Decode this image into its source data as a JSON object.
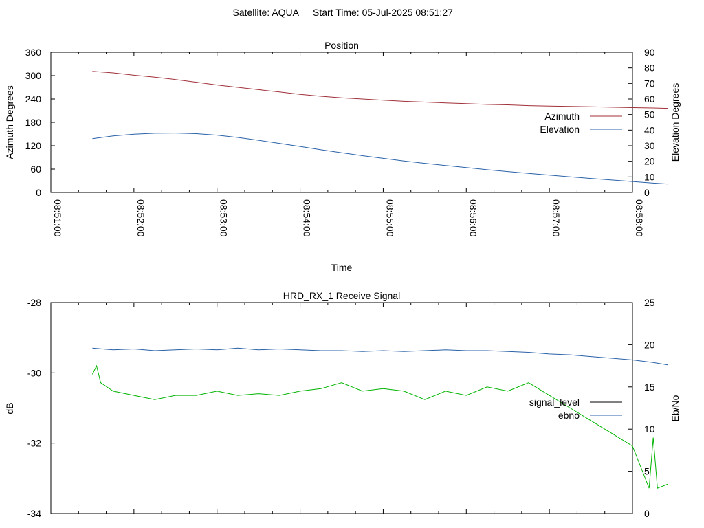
{
  "header": {
    "satellite": "Satellite: AQUA",
    "start_time": "Start Time: 05-Jul-2025 08:51:27"
  },
  "chart_data": [
    {
      "type": "line",
      "title": "Position",
      "xlabel": "Time",
      "ylabel": "Azimuth Degrees",
      "y2label": "Elevation Degrees",
      "xlim": [
        "08:51:00",
        "08:58:00"
      ],
      "xticks": [
        "08:51:00",
        "08:52:00",
        "08:53:00",
        "08:54:00",
        "08:55:00",
        "08:56:00",
        "08:57:00",
        "08:58:00"
      ],
      "ylim": [
        0,
        360
      ],
      "yticks": [
        0,
        60,
        120,
        180,
        240,
        300,
        360
      ],
      "y2lim": [
        0,
        90
      ],
      "y2ticks": [
        0,
        10,
        20,
        30,
        40,
        50,
        60,
        70,
        80,
        90
      ],
      "legend_position": "right",
      "x_unit": "minutes after 08:51:00",
      "series": [
        {
          "name": "Azimuth",
          "axis": "y",
          "color": "#a0303a",
          "x": [
            0.5,
            0.75,
            1.0,
            1.25,
            1.5,
            1.75,
            2.0,
            2.25,
            2.5,
            2.75,
            3.0,
            3.25,
            3.5,
            3.75,
            4.0,
            4.25,
            4.5,
            4.75,
            5.0,
            5.25,
            5.5,
            5.75,
            6.0,
            6.25,
            6.5,
            6.75,
            7.0,
            7.25,
            7.43
          ],
          "values": [
            311,
            307,
            301,
            296,
            290,
            283,
            276,
            270,
            264,
            258,
            252,
            247,
            243,
            240,
            237,
            234,
            232,
            230,
            228,
            226,
            225,
            223,
            222,
            221,
            220,
            219,
            218,
            217,
            216
          ]
        },
        {
          "name": "Elevation",
          "axis": "y2",
          "color": "#2a62a8",
          "x": [
            0.5,
            0.75,
            1.0,
            1.25,
            1.5,
            1.75,
            2.0,
            2.25,
            2.5,
            2.75,
            3.0,
            3.25,
            3.5,
            3.75,
            4.0,
            4.25,
            4.5,
            4.75,
            5.0,
            5.25,
            5.5,
            5.75,
            6.0,
            6.25,
            6.5,
            6.75,
            7.0,
            7.25,
            7.43
          ],
          "values": [
            34.5,
            36.3,
            37.4,
            38.0,
            38.1,
            37.7,
            36.8,
            35.3,
            33.5,
            31.5,
            29.5,
            27.4,
            25.5,
            23.6,
            21.9,
            20.2,
            18.7,
            17.3,
            16.0,
            14.6,
            13.4,
            12.2,
            11.1,
            10.0,
            9.0,
            8.0,
            7.0,
            6.0,
            5.4
          ]
        }
      ]
    },
    {
      "type": "line",
      "title": "HRD_RX_1 Receive Signal",
      "ylabel": "dB",
      "y2label": "Eb/No",
      "xlim": [
        "08:51:00",
        "08:58:00"
      ],
      "ylim": [
        -34,
        -28
      ],
      "yticks": [
        -34,
        -32,
        -30,
        -28
      ],
      "y2lim": [
        0,
        25
      ],
      "y2ticks": [
        0,
        5,
        10,
        15,
        20,
        25
      ],
      "legend_position": "right",
      "x_unit": "minutes after 08:51:00",
      "series": [
        {
          "name": "signal_level",
          "axis": "y",
          "color": "#000000",
          "legend_only": true,
          "x": [],
          "values": []
        },
        {
          "name": "ebno",
          "axis": "y2",
          "color": "#2a62a8",
          "x": [
            0.5,
            0.75,
            1.0,
            1.25,
            1.5,
            1.75,
            2.0,
            2.25,
            2.5,
            2.75,
            3.0,
            3.25,
            3.5,
            3.75,
            4.0,
            4.25,
            4.5,
            4.75,
            5.0,
            5.25,
            5.5,
            5.75,
            6.0,
            6.25,
            6.5,
            6.75,
            7.0,
            7.25,
            7.43
          ],
          "values": [
            19.6,
            19.4,
            19.5,
            19.3,
            19.4,
            19.5,
            19.4,
            19.6,
            19.4,
            19.5,
            19.4,
            19.3,
            19.3,
            19.2,
            19.3,
            19.2,
            19.3,
            19.4,
            19.3,
            19.3,
            19.2,
            19.1,
            18.9,
            18.8,
            18.6,
            18.4,
            18.2,
            17.9,
            17.6
          ]
        },
        {
          "name": "",
          "axis": "y2",
          "color": "#00b400",
          "x": [
            0.5,
            0.55,
            0.6,
            0.75,
            1.0,
            1.25,
            1.5,
            1.75,
            2.0,
            2.25,
            2.5,
            2.75,
            3.0,
            3.25,
            3.5,
            3.75,
            4.0,
            4.25,
            4.5,
            4.75,
            5.0,
            5.25,
            5.5,
            5.75,
            6.0,
            6.25,
            6.5,
            6.75,
            7.0,
            7.1,
            7.2,
            7.25,
            7.3,
            7.43
          ],
          "values": [
            16.5,
            17.5,
            15.5,
            14.5,
            14.0,
            13.5,
            14.0,
            14.0,
            14.5,
            14.0,
            14.2,
            14.0,
            14.5,
            14.8,
            15.5,
            14.5,
            14.8,
            14.5,
            13.5,
            14.5,
            14.0,
            15.0,
            14.5,
            15.5,
            14.0,
            12.5,
            11.0,
            9.5,
            8.0,
            5.5,
            3.0,
            9.0,
            3.0,
            3.5
          ]
        }
      ]
    }
  ]
}
